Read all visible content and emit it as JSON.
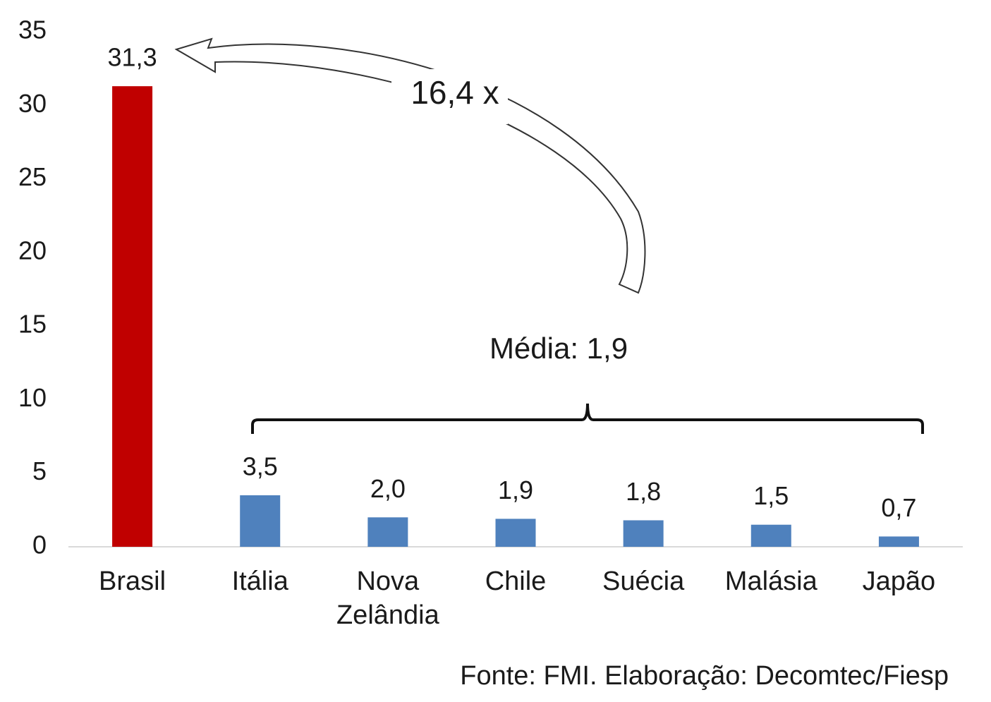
{
  "chart_data": {
    "type": "bar",
    "categories": [
      "Brasil",
      "Itália",
      "Nova Zelândia",
      "Chile",
      "Suécia",
      "Malásia",
      "Japão"
    ],
    "values": [
      31.3,
      3.5,
      2.0,
      1.9,
      1.8,
      1.5,
      0.7
    ],
    "value_labels": [
      "31,3",
      "3,5",
      "2,0",
      "1,9",
      "1,8",
      "1,5",
      "0,7"
    ],
    "colors": [
      "#c00000",
      "#4f81bd",
      "#4f81bd",
      "#4f81bd",
      "#4f81bd",
      "#4f81bd",
      "#4f81bd"
    ],
    "ylim": [
      0,
      35
    ],
    "yticks": [
      0,
      5,
      10,
      15,
      20,
      25,
      30,
      35
    ],
    "grid": false,
    "annotations": [
      "16,4 x",
      "Média: 1,9"
    ],
    "source": "Fonte: FMI. Elaboração: Decomtec/Fiesp"
  }
}
